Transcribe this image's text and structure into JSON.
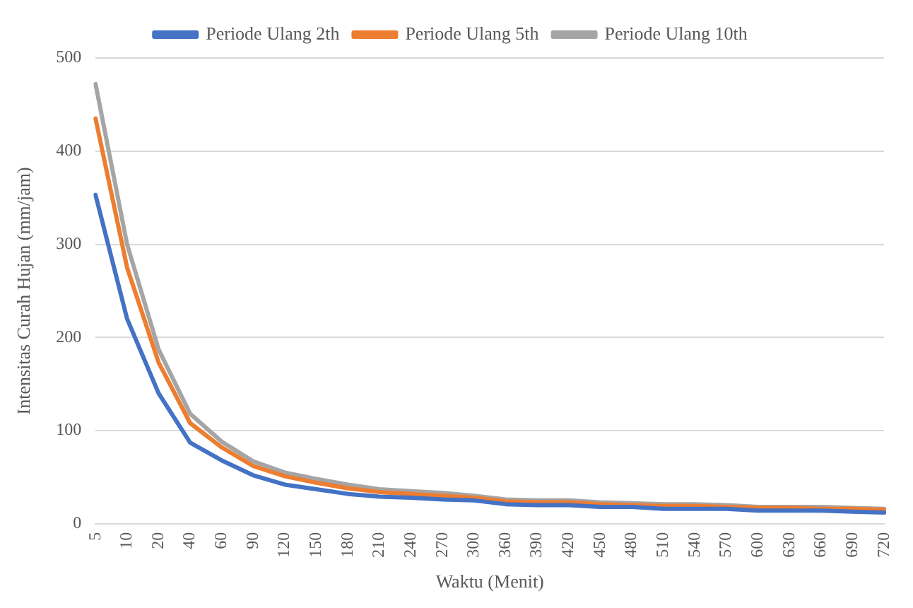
{
  "chart_data": {
    "type": "line",
    "xlabel": "Waktu (Menit)",
    "ylabel": "Intensitas Curah Hujan (mm/jam)",
    "categories": [
      "5",
      "10",
      "20",
      "40",
      "60",
      "90",
      "120",
      "150",
      "180",
      "210",
      "240",
      "270",
      "300",
      "360",
      "390",
      "420",
      "450",
      "480",
      "510",
      "540",
      "570",
      "600",
      "630",
      "660",
      "690",
      "720"
    ],
    "series": [
      {
        "name": "Periode Ulang 2th",
        "color": "#4472c4",
        "values": [
          353,
          220,
          140,
          87,
          68,
          52,
          42,
          37,
          32,
          29,
          28,
          26,
          25,
          21,
          20,
          20,
          18,
          18,
          16,
          16,
          16,
          14,
          14,
          14,
          13,
          12
        ]
      },
      {
        "name": "Periode Ulang 5th",
        "color": "#ed7d31",
        "values": [
          435,
          275,
          173,
          108,
          82,
          62,
          51,
          44,
          38,
          34,
          32,
          30,
          28,
          24,
          23,
          23,
          21,
          20,
          19,
          19,
          18,
          17,
          17,
          16,
          16,
          15
        ]
      },
      {
        "name": "Periode Ulang 10th",
        "color": "#a5a5a5",
        "values": [
          472,
          300,
          187,
          118,
          88,
          67,
          55,
          48,
          42,
          37,
          35,
          33,
          30,
          26,
          25,
          25,
          23,
          22,
          21,
          21,
          20,
          18,
          18,
          18,
          17,
          16
        ]
      }
    ],
    "ylim": [
      0,
      500
    ],
    "yticks": [
      0,
      100,
      200,
      300,
      400,
      500
    ],
    "grid": "y",
    "legend": "top",
    "marker": "none",
    "line_style": "solid"
  }
}
